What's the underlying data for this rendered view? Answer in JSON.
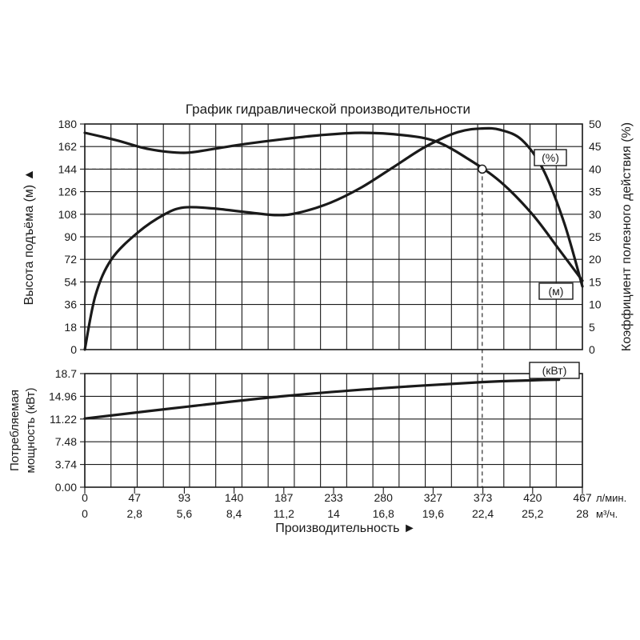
{
  "chart_data": {
    "type": "line",
    "title": "График гидравлической производительности",
    "xlabel": "Производительность ►",
    "x_ticks_lmin": [
      "0",
      "47",
      "93",
      "140",
      "187",
      "233",
      "280",
      "327",
      "373",
      "420",
      "467"
    ],
    "x_unit_lmin": "л/мин.",
    "x_ticks_m3h": [
      "0",
      "2,8",
      "5,6",
      "8,4",
      "11,2",
      "14",
      "16,8",
      "19,6",
      "22,4",
      "25,2",
      "28"
    ],
    "x_unit_m3h": "м³/ч.",
    "xlim": [
      0,
      467
    ],
    "upper": {
      "ylabel_left": "Высота подъёма (м) ▲",
      "ylabel_right": "Коэффициент полезного действия (%)",
      "left_ticks": [
        "0",
        "18",
        "36",
        "54",
        "72",
        "90",
        "108",
        "126",
        "144",
        "162",
        "180"
      ],
      "right_ticks": [
        "0",
        "5",
        "10",
        "15",
        "20",
        "25",
        "30",
        "35",
        "40",
        "45",
        "50"
      ],
      "ylim_left": [
        0,
        180
      ],
      "ylim_right": [
        0,
        50
      ],
      "series": [
        {
          "name": "(м)",
          "axis": "left",
          "x": [
            0,
            30,
            60,
            93,
            120,
            150,
            187,
            220,
            260,
            300,
            330,
            360,
            390,
            420,
            445,
            467
          ],
          "values": [
            173,
            167,
            160,
            157,
            160,
            164,
            168,
            171,
            173,
            171,
            166,
            152,
            134,
            108,
            80,
            55
          ]
        },
        {
          "name": "(%)",
          "axis": "right",
          "x": [
            0,
            10,
            25,
            50,
            75,
            93,
            120,
            150,
            180,
            200,
            230,
            260,
            290,
            320,
            350,
            373,
            390,
            410,
            430,
            450,
            467
          ],
          "values": [
            0,
            12,
            20,
            26,
            30,
            31.5,
            31.3,
            30.5,
            29.8,
            30.3,
            32.5,
            36,
            40.5,
            45,
            48.2,
            49,
            48.7,
            46.5,
            40,
            28,
            14
          ]
        }
      ],
      "marker": {
        "x": 373,
        "y_left": 144,
        "label": "(%)"
      }
    },
    "lower": {
      "ylabel_line1": "Потребляемая",
      "ylabel_line2": "мощность (кВт)",
      "left_ticks": [
        "0.00",
        "3.74",
        "7.48",
        "11.22",
        "14.96",
        "18.7"
      ],
      "ylim": [
        0,
        18.7
      ],
      "series": [
        {
          "name": "(кВт)",
          "x": [
            0,
            93,
            187,
            280,
            373,
            420,
            445
          ],
          "values": [
            11.3,
            13.2,
            15.0,
            16.3,
            17.3,
            17.6,
            17.7
          ]
        }
      ]
    },
    "grid": true
  }
}
